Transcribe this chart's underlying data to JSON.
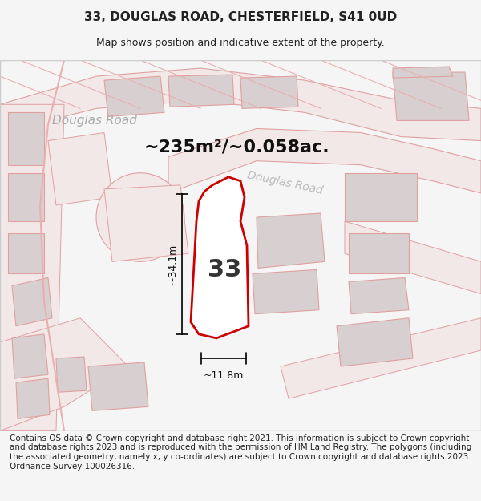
{
  "title_line1": "33, DOUGLAS ROAD, CHESTERFIELD, S41 0UD",
  "title_line2": "Map shows position and indicative extent of the property.",
  "footer_text": "Contains OS data © Crown copyright and database right 2021. This information is subject to Crown copyright and database rights 2023 and is reproduced with the permission of HM Land Registry. The polygons (including the associated geometry, namely x, y co-ordinates) are subject to Crown copyright and database rights 2023 Ordnance Survey 100026316.",
  "area_label": "~235m²/~0.058ac.",
  "number_label": "33",
  "dim_vertical": "~34.1m",
  "dim_horizontal": "~11.8m",
  "road_label_top": "Douglas Road",
  "road_label_mid": "Douglas Road",
  "bg_color": "#f5f0f0",
  "map_bg": "#ffffff",
  "plot_outline_color": "#cc0000",
  "road_fill_color": "#f0e8e8",
  "building_fill_color": "#d8d0d0",
  "map_line_color": "#e8b0b0",
  "title_fontsize": 11,
  "subtitle_fontsize": 9,
  "footer_fontsize": 7.5
}
